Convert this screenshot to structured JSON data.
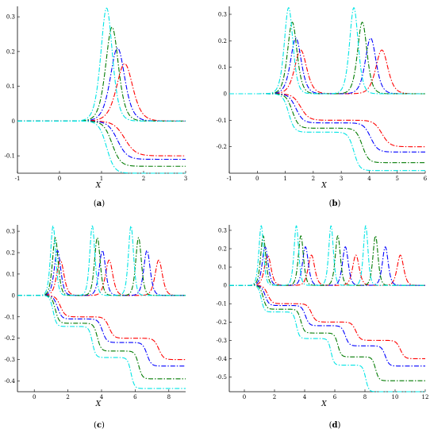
{
  "chart_data": [
    {
      "type": "line",
      "caption": "(a)",
      "xlabel": "X",
      "xlim": [
        -1,
        3
      ],
      "ylim": [
        -0.15,
        0.33
      ],
      "xticks": [
        "-1",
        "0",
        "1",
        "2",
        "3"
      ],
      "yticks": [
        "-0.1",
        "0",
        "0.1",
        "0.2",
        "0.3"
      ],
      "solitons": 1,
      "series": [
        {
          "color": "#ff0000",
          "peak": 0.165,
          "positions": [
            1.55
          ],
          "step": -0.1
        },
        {
          "color": "#0000ff",
          "peak": 0.21,
          "positions": [
            1.38
          ],
          "step": -0.11
        },
        {
          "color": "#007a00",
          "peak": 0.27,
          "positions": [
            1.25
          ],
          "step": -0.13
        },
        {
          "color": "#00e5e5",
          "peak": 0.325,
          "positions": [
            1.12
          ],
          "step": -0.15
        }
      ]
    },
    {
      "type": "line",
      "caption": "(b)",
      "xlabel": "X",
      "xlim": [
        -1,
        6
      ],
      "ylim": [
        -0.3,
        0.33
      ],
      "xticks": [
        "-1",
        "0",
        "1",
        "2",
        "3",
        "4",
        "5",
        "6"
      ],
      "yticks": [
        "-0.2",
        "-0.1",
        "0",
        "0.1",
        "0.2",
        "0.3"
      ],
      "solitons": 2,
      "series": [
        {
          "color": "#ff0000",
          "peak": 0.165,
          "positions": [
            1.55,
            4.45
          ],
          "step": -0.1
        },
        {
          "color": "#0000ff",
          "peak": 0.21,
          "positions": [
            1.38,
            4.05
          ],
          "step": -0.11
        },
        {
          "color": "#007a00",
          "peak": 0.27,
          "positions": [
            1.25,
            3.75
          ],
          "step": -0.13
        },
        {
          "color": "#00e5e5",
          "peak": 0.325,
          "positions": [
            1.12,
            3.45
          ],
          "step": -0.145
        }
      ]
    },
    {
      "type": "line",
      "caption": "(c)",
      "xlabel": "X",
      "xlim": [
        -1,
        9
      ],
      "ylim": [
        -0.45,
        0.33
      ],
      "xticks": [
        "0",
        "2",
        "4",
        "6",
        "8"
      ],
      "yticks": [
        "-0.4",
        "-0.3",
        "-0.2",
        "-0.1",
        "0",
        "0.1",
        "0.2",
        "0.3"
      ],
      "solitons": 3,
      "series": [
        {
          "color": "#ff0000",
          "peak": 0.165,
          "positions": [
            1.55,
            4.45,
            7.4
          ],
          "step": -0.1
        },
        {
          "color": "#0000ff",
          "peak": 0.21,
          "positions": [
            1.38,
            4.05,
            6.7
          ],
          "step": -0.11
        },
        {
          "color": "#007a00",
          "peak": 0.27,
          "positions": [
            1.25,
            3.75,
            6.2
          ],
          "step": -0.13
        },
        {
          "color": "#00e5e5",
          "peak": 0.325,
          "positions": [
            1.12,
            3.45,
            5.75
          ],
          "step": -0.145
        }
      ]
    },
    {
      "type": "line",
      "caption": "(d)",
      "xlabel": "X",
      "xlim": [
        -1,
        12
      ],
      "ylim": [
        -0.58,
        0.33
      ],
      "xticks": [
        "0",
        "2",
        "4",
        "6",
        "8",
        "10",
        "12"
      ],
      "yticks": [
        "-0.5",
        "-0.4",
        "-0.3",
        "-0.2",
        "-0.1",
        "0",
        "0.1",
        "0.2",
        "0.3"
      ],
      "solitons": 4,
      "series": [
        {
          "color": "#ff0000",
          "peak": 0.165,
          "positions": [
            1.55,
            4.45,
            7.4,
            10.35
          ],
          "step": -0.1
        },
        {
          "color": "#0000ff",
          "peak": 0.21,
          "positions": [
            1.38,
            4.05,
            6.7,
            9.35
          ],
          "step": -0.11
        },
        {
          "color": "#007a00",
          "peak": 0.27,
          "positions": [
            1.25,
            3.75,
            6.2,
            8.7
          ],
          "step": -0.13
        },
        {
          "color": "#00e5e5",
          "peak": 0.325,
          "positions": [
            1.12,
            3.45,
            5.75,
            8.05
          ],
          "step": -0.145
        }
      ]
    }
  ]
}
